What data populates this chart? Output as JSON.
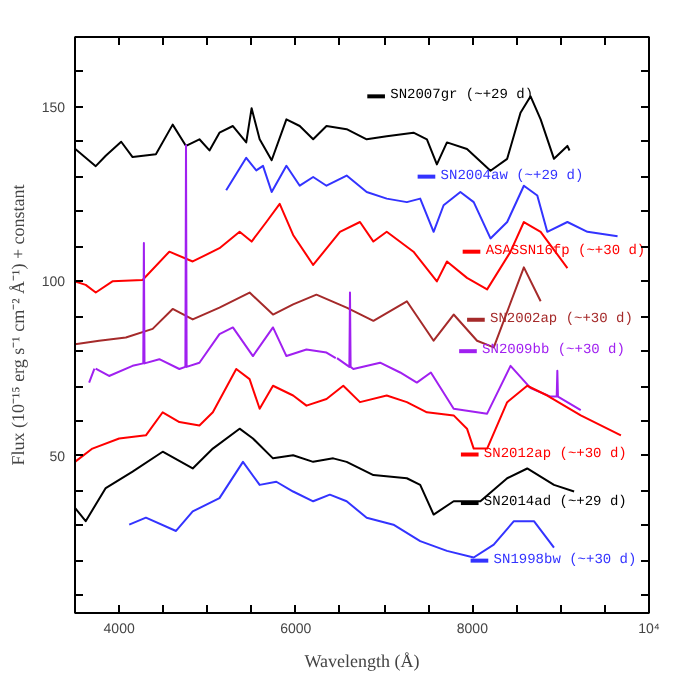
{
  "chart_data": {
    "type": "line",
    "legend": "right",
    "xlabel": "Wavelength (Å)",
    "ylabel": "Flux (10⁻¹⁵ erg s⁻¹ cm⁻² Å⁻¹) + constant",
    "xlim": [
      3500,
      10000
    ],
    "ylim": [
      5,
      170
    ],
    "xticks": [
      4000,
      {
        "value": 4500,
        "label": null
      },
      {
        "value": 5000,
        "label": null
      },
      {
        "value": 5500,
        "label": null
      },
      6000,
      {
        "value": 6500,
        "label": null
      },
      {
        "value": 7000,
        "label": null
      },
      {
        "value": 7500,
        "label": null
      },
      8000,
      {
        "value": 8500,
        "label": null
      },
      {
        "value": 9000,
        "label": null
      },
      {
        "value": 9500,
        "label": null
      },
      {
        "value": 10000,
        "label": "10⁴"
      }
    ],
    "yticks": [
      {
        "value": 10,
        "label": null
      },
      {
        "value": 20,
        "label": null
      },
      {
        "value": 30,
        "label": null
      },
      {
        "value": 40,
        "label": null
      },
      50,
      {
        "value": 60,
        "label": null
      },
      {
        "value": 70,
        "label": null
      },
      {
        "value": 80,
        "label": null
      },
      {
        "value": 90,
        "label": null
      },
      100,
      {
        "value": 110,
        "label": null
      },
      {
        "value": 120,
        "label": null
      },
      {
        "value": 130,
        "label": null
      },
      {
        "value": 140,
        "label": null
      },
      150,
      {
        "value": 160,
        "label": null
      }
    ],
    "series": [
      {
        "name": "SN2007gr (~+29 d)",
        "color": "#000000",
        "x": [
          3500,
          3735,
          3848,
          4023,
          4152,
          4416,
          4606,
          4757,
          4909,
          5023,
          5136,
          5288,
          5439,
          5500,
          5591,
          5727,
          5894,
          6045,
          6197,
          6348,
          6576,
          6803,
          7030,
          7333,
          7485,
          7598,
          7712,
          7939,
          8205,
          8394,
          8545,
          8659,
          8773,
          8924,
          9076,
          9100
        ],
        "values": [
          138,
          133,
          136,
          140,
          135.6,
          136.4,
          144.9,
          138.8,
          140.7,
          137.5,
          142.6,
          144.5,
          139.8,
          149.6,
          140.7,
          134.7,
          146.4,
          144.5,
          140.7,
          144.5,
          143.6,
          140.7,
          141.6,
          142.6,
          140.7,
          133.5,
          139.8,
          137.9,
          131.7,
          135.1,
          148.3,
          153,
          146.4,
          135.1,
          138.8,
          137.5
        ]
      },
      {
        "name": "SN2004aw (~+29 d)",
        "color": "#3333ff",
        "x": [
          5212,
          5439,
          5553,
          5629,
          5727,
          5894,
          6045,
          6197,
          6348,
          6576,
          6803,
          7030,
          7258,
          7409,
          7561,
          7674,
          7864,
          8015,
          8205,
          8394,
          8583,
          8735,
          8848,
          9076,
          9303,
          9644
        ],
        "values": [
          126.1,
          135.4,
          131.8,
          133.1,
          125.6,
          133.1,
          127.4,
          129.9,
          127.4,
          130.3,
          125.6,
          123.7,
          122.7,
          123.7,
          114.2,
          121.8,
          125.6,
          122.7,
          112.3,
          117,
          127.4,
          124.6,
          114.2,
          117,
          114.2,
          112.9
        ]
      },
      {
        "name": "ASASSN16fp (~+30 d)",
        "color": "#ff0000",
        "x": [
          3500,
          3621,
          3735,
          3924,
          4265,
          4568,
          4833,
          5136,
          5364,
          5500,
          5667,
          5818,
          5970,
          6197,
          6500,
          6727,
          6879,
          7030,
          7333,
          7598,
          7712,
          7939,
          8167,
          8432,
          8583,
          8773,
          9076
        ],
        "values": [
          100,
          99,
          96.8,
          100,
          100.4,
          108.5,
          105.7,
          109.5,
          114.2,
          111.4,
          117,
          122.2,
          113.3,
          104.7,
          114.2,
          117,
          111.4,
          114.2,
          108.5,
          100,
          105.7,
          101,
          97.7,
          108.5,
          117,
          114.2,
          103.8
        ]
      },
      {
        "name": "SN2002ap (~+30 d)",
        "color": "#a52a2a",
        "x": [
          3500,
          3773,
          4076,
          4379,
          4606,
          4833,
          5136,
          5477,
          5742,
          5970,
          6234,
          6576,
          6879,
          7258,
          7561,
          7788,
          8053,
          8242,
          8583,
          8773
        ],
        "values": [
          82,
          83,
          83.9,
          86.4,
          92.1,
          89.1,
          92.5,
          96.8,
          90.5,
          93.4,
          96.2,
          92.5,
          88.7,
          94.3,
          83,
          90.5,
          83,
          81.1,
          104,
          94.3
        ]
      },
      {
        "name": "SN2009bb (~+30 d)",
        "color": "#a020f0",
        "x": [
          3660,
          3720,
          3727,
          3734,
          3886,
          4152,
          4273,
          4280,
          4287,
          4455,
          4682,
          4750,
          4757,
          4764,
          4909,
          5136,
          5288,
          5515,
          5742,
          5894,
          6121,
          6348,
          6453,
          6460,
          6467,
          6607,
          6614,
          6621,
          6652,
          6955,
          7182,
          7371,
          7530,
          7788,
          8167,
          8432,
          8659,
          8886,
          8955,
          8962,
          8969,
          9227
        ],
        "values": [
          71,
          75,
          null,
          75,
          72.9,
          75.8,
          76.5,
          111,
          76.5,
          77.7,
          74.9,
          75.5,
          139,
          75.5,
          76.7,
          84.9,
          86.8,
          78.6,
          86.8,
          78.6,
          80.5,
          79.6,
          78,
          null,
          78,
          75.5,
          96.8,
          75.5,
          74.9,
          76.7,
          73.9,
          71,
          73.9,
          63.5,
          62.1,
          75.8,
          69.4,
          67,
          67,
          74.4,
          67,
          63.1
        ]
      },
      {
        "name": "SN2012ap (~+30 d)",
        "color": "#ff0000",
        "x": [
          3500,
          3697,
          4000,
          4303,
          4493,
          4682,
          4909,
          5061,
          5326,
          5477,
          5591,
          5742,
          5970,
          6121,
          6348,
          6538,
          6727,
          7030,
          7258,
          7485,
          7788,
          7939,
          8015,
          8167,
          8394,
          8621,
          8848,
          9227,
          9682
        ],
        "values": [
          48.3,
          52.1,
          55,
          55.9,
          62.5,
          59.7,
          58.7,
          62.5,
          74.9,
          72,
          63.5,
          70.1,
          67.3,
          64.4,
          66.3,
          70.1,
          65.4,
          67.3,
          65.4,
          62.5,
          61.6,
          57.8,
          52.1,
          52.1,
          65.4,
          70.1,
          67.3,
          61.6,
          55.9
        ]
      },
      {
        "name": "SN2014ad (~+29 d)",
        "color": "#000000",
        "x": [
          3500,
          3621,
          3848,
          4152,
          4493,
          4833,
          5061,
          5364,
          5515,
          5742,
          5970,
          6197,
          6424,
          6576,
          6879,
          7258,
          7409,
          7561,
          7788,
          8091,
          8394,
          8621,
          8924,
          9152
        ],
        "values": [
          35.1,
          31.3,
          40.8,
          45.5,
          51.2,
          46.4,
          52.1,
          57.8,
          55,
          49.3,
          50.2,
          48.3,
          49.3,
          48.3,
          44.5,
          43.6,
          41.7,
          33.2,
          37,
          37,
          43.6,
          46.4,
          41.7,
          39.8
        ]
      },
      {
        "name": "SN1998bw (~+30 d)",
        "color": "#3333ff",
        "x": [
          4114,
          4303,
          4644,
          4833,
          5136,
          5402,
          5591,
          5780,
          5970,
          6197,
          6386,
          6576,
          6803,
          7106,
          7409,
          7712,
          8015,
          8242,
          8470,
          8697,
          8924
        ],
        "values": [
          30.3,
          32.3,
          28.5,
          34.1,
          37.9,
          48.3,
          41.7,
          42.6,
          39.8,
          37,
          38.9,
          37,
          32.3,
          30.3,
          25.6,
          22.8,
          20.9,
          24.6,
          31.3,
          31.3,
          23.7
        ]
      }
    ]
  }
}
